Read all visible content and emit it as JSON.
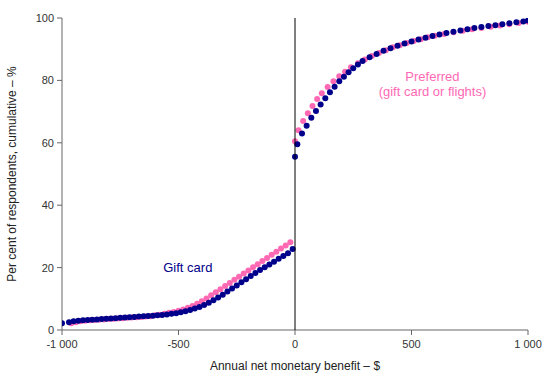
{
  "chart_data": {
    "type": "scatter",
    "xlabel": "Annual net monetary benefit – $",
    "ylabel": "Per cent of respondents, cumulative – %",
    "xlim": [
      -1000,
      1000
    ],
    "ylim": [
      0,
      100
    ],
    "xticks": [
      {
        "value": -1000,
        "label": "-1 000"
      },
      -500,
      0,
      500,
      {
        "value": 1000,
        "label": "1 000"
      }
    ],
    "yticks": [
      0,
      20,
      40,
      60,
      80,
      100
    ],
    "grid": false,
    "vline": 0,
    "annotations": [
      {
        "text": "Gift card",
        "x": -460,
        "y": 20,
        "color": "#00008B"
      },
      {
        "text": "Preferred\n(gift card or flights)",
        "x": 590,
        "y": 79,
        "color": "#FF69B4"
      }
    ],
    "series": [
      {
        "color": "#FF69B4",
        "marker": "circle",
        "x": [
          -960,
          -940,
          -920,
          -900,
          -880,
          -860,
          -840,
          -820,
          -800,
          -780,
          -760,
          -740,
          -720,
          -700,
          -680,
          -660,
          -640,
          -620,
          -600,
          -580,
          -560,
          -540,
          -520,
          -500,
          -480,
          -460,
          -440,
          -420,
          -400,
          -380,
          -360,
          -340,
          -320,
          -300,
          -280,
          -260,
          -240,
          -220,
          -200,
          -180,
          -160,
          -140,
          -120,
          -100,
          -80,
          -60,
          -40,
          -20,
          0,
          15,
          35,
          55,
          75,
          95,
          115,
          140,
          165,
          190,
          215,
          240,
          270,
          300,
          330,
          360,
          390,
          420,
          450,
          480,
          510,
          540,
          570,
          600,
          640,
          680,
          720,
          760,
          800,
          840,
          880,
          920,
          960,
          1000
        ],
        "values": [
          2.2,
          2.5,
          2.8,
          3.0,
          3.1,
          3.2,
          3.3,
          3.4,
          3.5,
          3.6,
          3.7,
          3.8,
          3.9,
          4.0,
          4.1,
          4.2,
          4.3,
          4.4,
          4.7,
          4.9,
          5.2,
          5.5,
          5.8,
          6.2,
          6.6,
          7.1,
          7.7,
          8.4,
          9.2,
          10.1,
          11.1,
          12.1,
          13.1,
          14.1,
          15.1,
          16.1,
          17.1,
          18.1,
          19.1,
          20.1,
          21.1,
          22.1,
          23.1,
          24.1,
          25.1,
          26.1,
          27.1,
          28.1,
          60.5,
          64.0,
          67.0,
          69.5,
          71.8,
          74.0,
          75.9,
          77.9,
          79.7,
          81.3,
          82.8,
          84.2,
          85.5,
          86.7,
          87.8,
          88.8,
          89.7,
          90.6,
          91.3,
          92.0,
          92.6,
          93.2,
          93.8,
          94.3,
          94.9,
          95.4,
          95.9,
          96.4,
          96.8,
          97.2,
          97.6,
          98.0,
          98.4,
          98.8
        ]
      },
      {
        "color": "#00008B",
        "marker": "circle",
        "x": [
          -1000,
          -970,
          -950,
          -930,
          -910,
          -890,
          -870,
          -850,
          -830,
          -810,
          -790,
          -770,
          -750,
          -730,
          -710,
          -690,
          -670,
          -650,
          -630,
          -610,
          -590,
          -570,
          -550,
          -530,
          -510,
          -490,
          -470,
          -450,
          -430,
          -410,
          -390,
          -370,
          -350,
          -330,
          -310,
          -290,
          -270,
          -250,
          -230,
          -210,
          -190,
          -170,
          -150,
          -130,
          -110,
          -90,
          -70,
          -50,
          -30,
          -10,
          0,
          10,
          30,
          50,
          70,
          90,
          110,
          130,
          150,
          170,
          190,
          210,
          230,
          250,
          270,
          290,
          320,
          350,
          380,
          410,
          440,
          470,
          500,
          530,
          560,
          590,
          620,
          650,
          680,
          710,
          740,
          770,
          800,
          830,
          860,
          890,
          920,
          950,
          980,
          1000
        ],
        "values": [
          2.2,
          2.5,
          2.8,
          3.0,
          3.1,
          3.2,
          3.3,
          3.4,
          3.5,
          3.6,
          3.7,
          3.8,
          3.9,
          4.0,
          4.1,
          4.2,
          4.3,
          4.4,
          4.5,
          4.6,
          4.7,
          4.8,
          5.0,
          5.2,
          5.4,
          5.7,
          6.0,
          6.4,
          6.9,
          7.4,
          8.0,
          8.7,
          9.5,
          10.4,
          11.3,
          12.3,
          13.3,
          14.3,
          15.3,
          16.3,
          17.3,
          18.3,
          19.2,
          20.1,
          21.0,
          21.9,
          22.8,
          23.7,
          24.6,
          26.0,
          55.5,
          59.5,
          63.0,
          65.5,
          68.0,
          70.2,
          72.3,
          74.3,
          76.2,
          78.0,
          79.7,
          81.2,
          82.6,
          83.9,
          85.1,
          86.2,
          87.4,
          88.5,
          89.5,
          90.3,
          91.1,
          91.8,
          92.5,
          93.1,
          93.7,
          94.2,
          94.7,
          95.2,
          95.6,
          96.0,
          96.4,
          96.8,
          97.1,
          97.4,
          97.7,
          98.0,
          98.3,
          98.6,
          98.9,
          99.2
        ]
      }
    ]
  }
}
